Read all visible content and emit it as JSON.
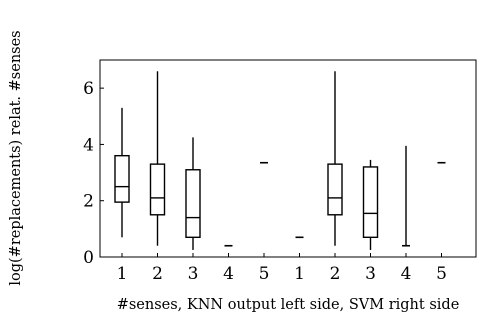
{
  "chart_data": {
    "type": "box",
    "xlabel": "#senses, KNN output left side, SVM right side",
    "ylabel": "log(#replacements) relat. #senses",
    "ylim": [
      0,
      7
    ],
    "yticks": [
      0,
      2,
      4,
      6
    ],
    "categories": [
      "1",
      "2",
      "3",
      "4",
      "5",
      "1",
      "2",
      "3",
      "4",
      "5"
    ],
    "grid": false,
    "boxes": [
      {
        "label": "1",
        "whisker_low": 0.7,
        "q1": 1.95,
        "median": 2.5,
        "q3": 3.6,
        "whisker_high": 5.3
      },
      {
        "label": "2",
        "whisker_low": 0.4,
        "q1": 1.5,
        "median": 2.1,
        "q3": 3.3,
        "whisker_high": 6.6
      },
      {
        "label": "3",
        "whisker_low": 0.25,
        "q1": 0.7,
        "median": 1.4,
        "q3": 3.1,
        "whisker_high": 4.25
      },
      {
        "label": "4",
        "whisker_low": 0.4,
        "q1": 0.4,
        "median": 0.4,
        "q3": 0.4,
        "whisker_high": 0.4
      },
      {
        "label": "5",
        "whisker_low": 3.35,
        "q1": 3.35,
        "median": 3.35,
        "q3": 3.35,
        "whisker_high": 3.35
      },
      {
        "label": "1",
        "whisker_low": 0.7,
        "q1": 0.7,
        "median": 0.7,
        "q3": 0.7,
        "whisker_high": 0.7
      },
      {
        "label": "2",
        "whisker_low": 0.4,
        "q1": 1.5,
        "median": 2.1,
        "q3": 3.3,
        "whisker_high": 6.6
      },
      {
        "label": "3",
        "whisker_low": 0.25,
        "q1": 0.7,
        "median": 1.55,
        "q3": 3.2,
        "whisker_high": 3.45
      },
      {
        "label": "4",
        "whisker_low": 0.4,
        "q1": 0.4,
        "median": 0.4,
        "q3": 0.4,
        "whisker_high": 3.95
      },
      {
        "label": "5",
        "whisker_low": 3.35,
        "q1": 3.35,
        "median": 3.35,
        "q3": 3.35,
        "whisker_high": 3.35
      }
    ]
  }
}
